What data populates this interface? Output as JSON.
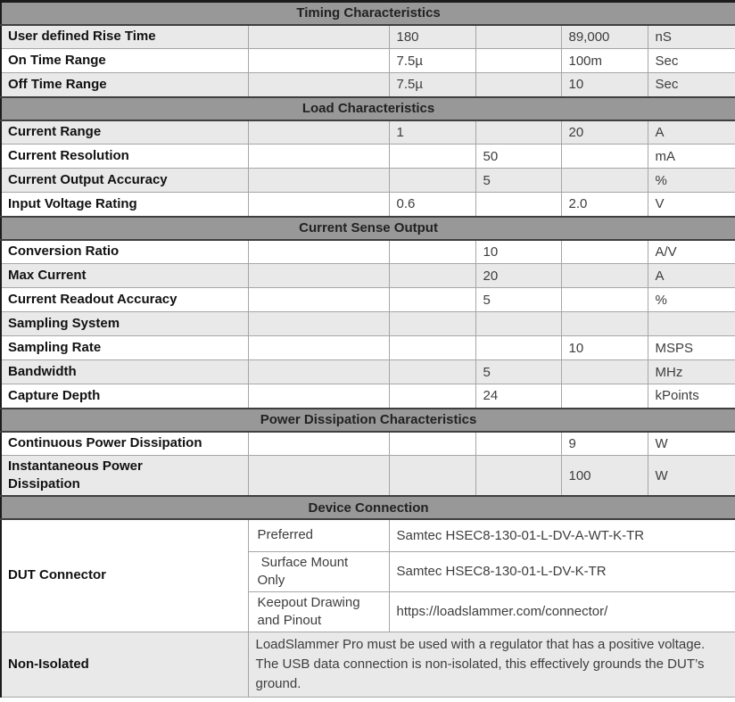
{
  "table": {
    "column_names": [
      "param",
      "cond",
      "min",
      "typ",
      "max",
      "unit"
    ],
    "colors": {
      "section_header_bg": "#989898",
      "shaded_row_bg": "#e9e9e9",
      "grid_line": "#a6a6a6",
      "outer_border": "#1c1c1c"
    },
    "sections": [
      {
        "title": "Timing Characteristics",
        "type": "spec",
        "rows": [
          {
            "param": "User defined Rise Time",
            "cond": "",
            "min": "180",
            "typ": "",
            "max": "89,000",
            "unit": "nS",
            "shaded": true
          },
          {
            "param": "On Time Range",
            "cond": "",
            "min": "7.5µ",
            "typ": "",
            "max": "100m",
            "unit": "Sec",
            "shaded": false
          },
          {
            "param": "Off Time Range",
            "cond": "",
            "min": "7.5µ",
            "typ": "",
            "max": "10",
            "unit": "Sec",
            "shaded": true
          }
        ]
      },
      {
        "title": "Load Characteristics",
        "type": "spec",
        "rows": [
          {
            "param": "Current Range",
            "cond": "",
            "min": "1",
            "typ": "",
            "max": "20",
            "unit": "A",
            "shaded": true
          },
          {
            "param": "Current Resolution",
            "cond": "",
            "min": "",
            "typ": "50",
            "max": "",
            "unit": "mA",
            "shaded": false
          },
          {
            "param": "Current Output Accuracy",
            "cond": "",
            "min": "",
            "typ": "5",
            "max": "",
            "unit": "%",
            "shaded": true
          },
          {
            "param": "Input Voltage Rating",
            "cond": "",
            "min": "0.6",
            "typ": "",
            "max": "2.0",
            "unit": "V",
            "shaded": false
          }
        ]
      },
      {
        "title": "Current Sense Output",
        "type": "spec",
        "rows": [
          {
            "param": "Conversion Ratio",
            "cond": "",
            "min": "",
            "typ": "10",
            "max": "",
            "unit": "A/V",
            "shaded": false
          },
          {
            "param": "Max Current",
            "cond": "",
            "min": "",
            "typ": "20",
            "max": "",
            "unit": "A",
            "shaded": true
          },
          {
            "param": "Current Readout Accuracy",
            "cond": "",
            "min": "",
            "typ": "5",
            "max": "",
            "unit": "%",
            "shaded": false
          },
          {
            "param": "Sampling System",
            "cond": "",
            "min": "",
            "typ": "",
            "max": "",
            "unit": "",
            "shaded": true
          },
          {
            "param": "Sampling Rate",
            "cond": "",
            "min": "",
            "typ": "",
            "max": "10",
            "unit": "MSPS",
            "shaded": false
          },
          {
            "param": "Bandwidth",
            "cond": "",
            "min": "",
            "typ": "5",
            "max": "",
            "unit": "MHz",
            "shaded": true
          },
          {
            "param": "Capture Depth",
            "cond": "",
            "min": "",
            "typ": "24",
            "max": "",
            "unit": "kPoints",
            "shaded": false
          }
        ]
      },
      {
        "title": "Power Dissipation Characteristics",
        "type": "spec",
        "rows": [
          {
            "param": "Continuous Power Dissipation",
            "cond": "",
            "min": "",
            "typ": "",
            "max": "9",
            "unit": "W",
            "shaded": false
          },
          {
            "param": "Instantaneous Power Dissipation",
            "cond": "",
            "min": "",
            "typ": "",
            "max": "100",
            "unit": "W",
            "shaded": true
          }
        ]
      },
      {
        "title": "Device Connection",
        "type": "connection",
        "connector": {
          "param": "DUT Connector",
          "entries": [
            {
              "label": "Preferred",
              "value": "Samtec HSEC8-130-01-L-DV-A-WT-K-TR"
            },
            {
              "label": " Surface Mount Only",
              "value": "Samtec HSEC8-130-01-L-DV-K-TR"
            },
            {
              "label": "Keepout Drawing and Pinout",
              "value": "https://loadslammer.com/connector/"
            }
          ]
        },
        "note_row": {
          "param": "Non-Isolated",
          "text": "LoadSlammer Pro must be used with a regulator that has a positive voltage. The USB data connection is non-isolated, this effectively grounds the DUT’s ground.",
          "shaded": true
        }
      }
    ]
  }
}
